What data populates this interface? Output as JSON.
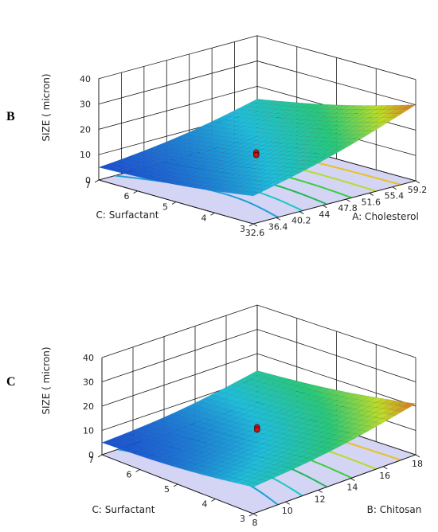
{
  "colors": {
    "floor": "#d4d4f5",
    "surface_low": "#1b4fd1",
    "surface_high": "#e0541e",
    "design_point": "#c81414"
  },
  "chart_data": [
    {
      "type": "surface",
      "panel": "B",
      "zlabel": "SIZE ( micron)",
      "xlabel": "A: Cholesterol",
      "ylabel": "C: Surfactant",
      "x_ticks": [
        "32.6",
        "36.4",
        "40.2",
        "44",
        "47.8",
        "51.6",
        "55.4",
        "59.2"
      ],
      "y_ticks": [
        "3",
        "4",
        "5",
        "6",
        "7"
      ],
      "z_ticks": [
        "0",
        "10",
        "20",
        "30",
        "40"
      ],
      "xlim": [
        32.6,
        59.2
      ],
      "ylim": [
        3,
        7
      ],
      "zlim": [
        0,
        40
      ],
      "grid": true,
      "surface_corners": {
        "x_min_y_min": 11,
        "x_min_y_max": 5,
        "x_max_y_min": 30,
        "x_max_y_max": 15
      },
      "design_points": [
        {
          "x": 45.9,
          "y": 5,
          "z": 11
        },
        {
          "x": 45.9,
          "y": 5,
          "z": 10
        }
      ]
    },
    {
      "type": "surface",
      "panel": "C",
      "zlabel": "SIZE ( micron)",
      "xlabel": "B: Chitosan",
      "ylabel": "C: Surfactant",
      "x_ticks": [
        "8",
        "10",
        "12",
        "14",
        "16",
        "18"
      ],
      "y_ticks": [
        "3",
        "4",
        "5",
        "6",
        "7"
      ],
      "z_ticks": [
        "0",
        "10",
        "20",
        "30",
        "40"
      ],
      "xlim": [
        8,
        18
      ],
      "ylim": [
        3,
        7
      ],
      "zlim": [
        0,
        40
      ],
      "grid": true,
      "surface_corners": {
        "x_min_y_min": 11,
        "x_min_y_max": 5,
        "x_max_y_min": 21,
        "x_max_y_max": 13
      },
      "design_points": [
        {
          "x": 13,
          "y": 5,
          "z": 12
        },
        {
          "x": 13,
          "y": 5,
          "z": 11
        }
      ]
    }
  ]
}
